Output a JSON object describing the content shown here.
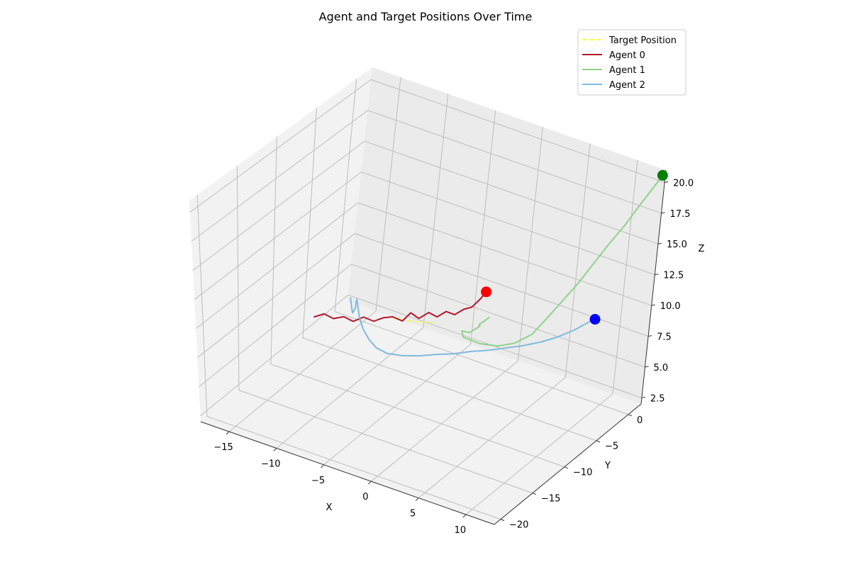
{
  "chart_data": {
    "type": "line",
    "projection": "3d",
    "title": "Agent and Target Positions Over Time",
    "xlabel": "X",
    "ylabel": "Y",
    "zlabel": "Z",
    "xlim": [
      -18,
      13
    ],
    "ylim": [
      -21,
      2
    ],
    "zlim": [
      2,
      21
    ],
    "x_ticks": [
      -15,
      -10,
      -5,
      0,
      5,
      10
    ],
    "x_tick_labels": [
      "−15",
      "−10",
      "−5",
      "0",
      "5",
      "10"
    ],
    "y_ticks": [
      -20,
      -15,
      -10,
      -5,
      0
    ],
    "y_tick_labels": [
      "−20",
      "−15",
      "−10",
      "−5",
      "0"
    ],
    "z_ticks": [
      2.5,
      5.0,
      7.5,
      10.0,
      12.5,
      15.0,
      17.5,
      20.0
    ],
    "z_tick_labels": [
      "2.5",
      "5.0",
      "7.5",
      "10.0",
      "12.5",
      "15.0",
      "17.5",
      "20.0"
    ],
    "grid": true,
    "legend": {
      "placement": "top-right",
      "entries": [
        {
          "label": "Target Position",
          "color": "#ffff33",
          "style": "dashed"
        },
        {
          "label": "Agent 0",
          "color": "#b2182b",
          "style": "solid"
        },
        {
          "label": "Agent 1",
          "color": "#8fd18a",
          "style": "solid"
        },
        {
          "label": "Agent 2",
          "color": "#7fbadc",
          "style": "solid"
        }
      ]
    },
    "series": [
      {
        "name": "Target Position",
        "color": "#ffff33",
        "style": "dashed",
        "points": [
          [
            -11.0,
            -1.5,
            4.0
          ],
          [
            -9.2,
            -1.2,
            4.1
          ],
          [
            -7.4,
            -0.8,
            4.3
          ]
        ]
      },
      {
        "name": "Agent 0",
        "color": "#b2182b",
        "end_color": "#ff0000",
        "points": [
          [
            -17.0,
            -5.0,
            4.0
          ],
          [
            -16.2,
            -4.6,
            4.3
          ],
          [
            -15.4,
            -4.3,
            4.0
          ],
          [
            -14.6,
            -3.9,
            4.2
          ],
          [
            -13.8,
            -3.6,
            3.9
          ],
          [
            -13.0,
            -3.2,
            4.3
          ],
          [
            -12.2,
            -2.8,
            4.0
          ],
          [
            -11.5,
            -2.4,
            4.3
          ],
          [
            -10.8,
            -2.0,
            4.4
          ],
          [
            -10.0,
            -1.6,
            4.1
          ],
          [
            -9.4,
            -1.3,
            4.8
          ],
          [
            -8.7,
            -1.0,
            4.4
          ],
          [
            -8.0,
            -0.6,
            4.9
          ],
          [
            -7.3,
            -0.3,
            4.6
          ],
          [
            -6.6,
            0.0,
            5.1
          ],
          [
            -5.9,
            0.3,
            4.9
          ],
          [
            -5.2,
            0.6,
            5.4
          ],
          [
            -4.6,
            0.9,
            5.6
          ],
          [
            -4.0,
            1.2,
            6.3
          ],
          [
            -3.6,
            1.4,
            6.9
          ]
        ]
      },
      {
        "name": "Agent 1",
        "color": "#8fd18a",
        "end_color": "#008000",
        "points": [
          [
            -3.0,
            1.4,
            5.0
          ],
          [
            -3.8,
            1.1,
            4.3
          ],
          [
            -3.4,
            0.6,
            4.5
          ],
          [
            -4.2,
            0.3,
            3.9
          ],
          [
            -4.8,
            0.0,
            4.0
          ],
          [
            -4.4,
            -0.4,
            3.8
          ],
          [
            -2.8,
            -0.2,
            3.6
          ],
          [
            -1.0,
            0.0,
            3.8
          ],
          [
            0.5,
            0.3,
            4.3
          ],
          [
            2.0,
            0.6,
            5.3
          ],
          [
            3.2,
            0.8,
            6.8
          ],
          [
            4.5,
            1.0,
            8.5
          ],
          [
            5.8,
            1.2,
            10.2
          ],
          [
            7.0,
            1.4,
            12.0
          ],
          [
            8.2,
            1.6,
            13.8
          ],
          [
            9.5,
            1.8,
            15.6
          ],
          [
            10.7,
            2.0,
            17.5
          ],
          [
            11.8,
            2.2,
            19.2
          ],
          [
            12.5,
            2.3,
            20.3
          ]
        ]
      },
      {
        "name": "Agent 2",
        "color": "#7fbadc",
        "end_color": "#0000ff",
        "points": [
          [
            -14.5,
            -3.2,
            5.5
          ],
          [
            -14.0,
            -3.6,
            4.8
          ],
          [
            -14.3,
            -3.0,
            4.2
          ],
          [
            -13.8,
            -3.4,
            4.9
          ],
          [
            -14.1,
            -2.8,
            5.3
          ],
          [
            -13.5,
            -3.1,
            4.1
          ],
          [
            -12.6,
            -3.8,
            3.7
          ],
          [
            -11.4,
            -4.6,
            3.5
          ],
          [
            -10.2,
            -5.2,
            3.4
          ],
          [
            -8.8,
            -5.6,
            3.5
          ],
          [
            -7.2,
            -5.7,
            3.8
          ],
          [
            -5.5,
            -5.6,
            4.2
          ],
          [
            -3.8,
            -5.4,
            4.7
          ],
          [
            -2.2,
            -5.2,
            5.1
          ],
          [
            -0.6,
            -4.9,
            5.6
          ],
          [
            1.0,
            -4.6,
            6.0
          ],
          [
            2.6,
            -4.3,
            6.5
          ],
          [
            4.2,
            -4.0,
            7.0
          ],
          [
            5.8,
            -3.7,
            7.6
          ],
          [
            7.3,
            -3.4,
            8.3
          ],
          [
            8.7,
            -3.1,
            9.1
          ],
          [
            10.0,
            -2.8,
            10.0
          ],
          [
            10.5,
            -2.7,
            10.3
          ]
        ]
      }
    ]
  }
}
